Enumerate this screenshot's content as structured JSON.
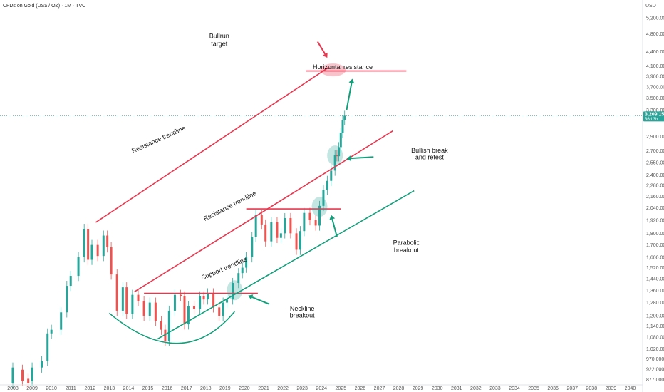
{
  "chart_data": {
    "type": "candlestick",
    "title": "CFDs on Gold (US$ / OZ) · 1M · TVC",
    "currency": "USD",
    "y_scale": "log",
    "ylim": [
      860,
      5400
    ],
    "xlim": [
      2008,
      2040.5
    ],
    "price_ticks": [
      "5,200.000",
      "4,800.000",
      "4,400.000",
      "4,100.000",
      "3,900.000",
      "3,700.000",
      "3,500.000",
      "3,300.000",
      "2,900.000",
      "2,700.000",
      "2,550.000",
      "2,400.000",
      "2,280.000",
      "2,160.000",
      "2,040.000",
      "1,920.000",
      "1,800.000",
      "1,700.000",
      "1,600.000",
      "1,520.000",
      "1,440.000",
      "1,360.000",
      "1,280.000",
      "1,200.000",
      "1,140.000",
      "1,080.000",
      "1,020.000",
      "970.000",
      "922.000",
      "877.000"
    ],
    "year_ticks": [
      "2008",
      "2009",
      "2010",
      "2011",
      "2012",
      "2013",
      "2014",
      "2015",
      "2016",
      "2017",
      "2018",
      "2019",
      "2020",
      "2021",
      "2022",
      "2023",
      "2024",
      "2025",
      "2026",
      "2027",
      "2028",
      "2029",
      "2030",
      "2031",
      "2032",
      "2033",
      "2034",
      "2035",
      "2036",
      "2037",
      "2038",
      "2039",
      "2040"
    ],
    "current_price": {
      "label": "3,209.150",
      "countdown": "36d 3h",
      "value": 3209.15
    },
    "candles": [
      [
        2008.0,
        860,
        930
      ],
      [
        2008.5,
        920,
        870
      ],
      [
        2008.8,
        880,
        860
      ],
      [
        2009.0,
        870,
        930
      ],
      [
        2009.5,
        930,
        960
      ],
      [
        2009.8,
        960,
        1100
      ],
      [
        2010.0,
        1100,
        1120
      ],
      [
        2010.5,
        1120,
        1220
      ],
      [
        2010.8,
        1220,
        1390
      ],
      [
        2011.0,
        1390,
        1460
      ],
      [
        2011.4,
        1460,
        1600
      ],
      [
        2011.7,
        1600,
        1840
      ],
      [
        2011.9,
        1840,
        1580
      ],
      [
        2012.1,
        1580,
        1700
      ],
      [
        2012.4,
        1700,
        1610
      ],
      [
        2012.7,
        1610,
        1780
      ],
      [
        2012.9,
        1780,
        1680
      ],
      [
        2013.1,
        1680,
        1470
      ],
      [
        2013.4,
        1470,
        1230
      ],
      [
        2013.7,
        1230,
        1380
      ],
      [
        2013.9,
        1380,
        1210
      ],
      [
        2014.2,
        1210,
        1330
      ],
      [
        2014.5,
        1330,
        1290
      ],
      [
        2014.8,
        1290,
        1200
      ],
      [
        2015.1,
        1200,
        1280
      ],
      [
        2015.4,
        1280,
        1170
      ],
      [
        2015.7,
        1170,
        1120
      ],
      [
        2015.9,
        1120,
        1060
      ],
      [
        2016.1,
        1060,
        1230
      ],
      [
        2016.4,
        1230,
        1330
      ],
      [
        2016.7,
        1330,
        1320
      ],
      [
        2016.9,
        1320,
        1150
      ],
      [
        2017.1,
        1150,
        1260
      ],
      [
        2017.4,
        1260,
        1240
      ],
      [
        2017.7,
        1240,
        1320
      ],
      [
        2017.9,
        1320,
        1300
      ],
      [
        2018.1,
        1300,
        1340
      ],
      [
        2018.4,
        1340,
        1250
      ],
      [
        2018.7,
        1250,
        1200
      ],
      [
        2018.9,
        1200,
        1280
      ],
      [
        2019.1,
        1280,
        1300
      ],
      [
        2019.4,
        1300,
        1410
      ],
      [
        2019.7,
        1410,
        1480
      ],
      [
        2019.9,
        1480,
        1520
      ],
      [
        2020.1,
        1520,
        1600
      ],
      [
        2020.4,
        1600,
        1770
      ],
      [
        2020.6,
        1770,
        1970
      ],
      [
        2020.9,
        1970,
        1880
      ],
      [
        2021.1,
        1880,
        1730
      ],
      [
        2021.4,
        1730,
        1900
      ],
      [
        2021.7,
        1900,
        1760
      ],
      [
        2021.9,
        1760,
        1800
      ],
      [
        2022.1,
        1800,
        1940
      ],
      [
        2022.4,
        1940,
        1800
      ],
      [
        2022.7,
        1800,
        1660
      ],
      [
        2022.9,
        1660,
        1820
      ],
      [
        2023.1,
        1820,
        1990
      ],
      [
        2023.4,
        1990,
        1920
      ],
      [
        2023.7,
        1920,
        1870
      ],
      [
        2023.9,
        1870,
        2060
      ],
      [
        2024.1,
        2060,
        2230
      ],
      [
        2024.3,
        2230,
        2330
      ],
      [
        2024.5,
        2330,
        2450
      ],
      [
        2024.7,
        2450,
        2650
      ],
      [
        2024.8,
        2650,
        2630
      ],
      [
        2024.9,
        2630,
        2750
      ],
      [
        2025.0,
        2750,
        2950
      ],
      [
        2025.1,
        2950,
        3140
      ],
      [
        2025.2,
        3140,
        3209.15
      ]
    ],
    "annotations": [
      {
        "text": "Bullrun",
        "value": 4700,
        "year": 2018.7
      },
      {
        "text": "target",
        "value": 4520,
        "year": 2018.7
      },
      {
        "text": "Horizontal resistance",
        "value": 4040,
        "year": 2025.1
      },
      {
        "text": "Resistance trendline",
        "value": 2830,
        "year": 2015.6
      },
      {
        "text": "Resistance trendline",
        "value": 2040,
        "year": 2019.3
      },
      {
        "text": "Bullish break",
        "value": 2680,
        "year": 2029.6
      },
      {
        "text": "and retest",
        "value": 2590,
        "year": 2029.6
      },
      {
        "text": "Parabolic",
        "value": 1700,
        "year": 2028.4
      },
      {
        "text": "breakout",
        "value": 1640,
        "year": 2028.4
      },
      {
        "text": "Support trendline",
        "value": 1500,
        "year": 2019.0
      },
      {
        "text": "Neckline",
        "value": 1230,
        "year": 2023.0
      },
      {
        "text": "breakout",
        "value": 1190,
        "year": 2023.0
      }
    ],
    "levels": {
      "neckline": {
        "value": 1340,
        "x": [
          2014.8,
          2020.7
        ]
      },
      "horizontal_resistance": {
        "value": 4000,
        "x": [
          2023.2,
          2028.4
        ]
      },
      "top_resistance_2024": {
        "value": 2030,
        "x": [
          2020.1,
          2025.0
        ]
      }
    },
    "trendlines": [
      {
        "name": "Resistance trendline",
        "from": [
          2012.3,
          1900
        ],
        "to": [
          2024.4,
          4080
        ],
        "color": "#e8384f"
      },
      {
        "name": "Resistance trendline",
        "from": [
          2014.3,
          1350
        ],
        "to": [
          2027.7,
          2980
        ],
        "color": "#e8384f"
      },
      {
        "name": "Support trendline",
        "from": [
          2015.5,
          1070
        ],
        "to": [
          2028.8,
          2220
        ],
        "color": "#129e7a"
      }
    ],
    "colors": {
      "up": "#26a69a",
      "down": "#ef5350",
      "resistance": "#e8384f",
      "support": "#129e7a",
      "price_tag": "#26a69a"
    }
  }
}
